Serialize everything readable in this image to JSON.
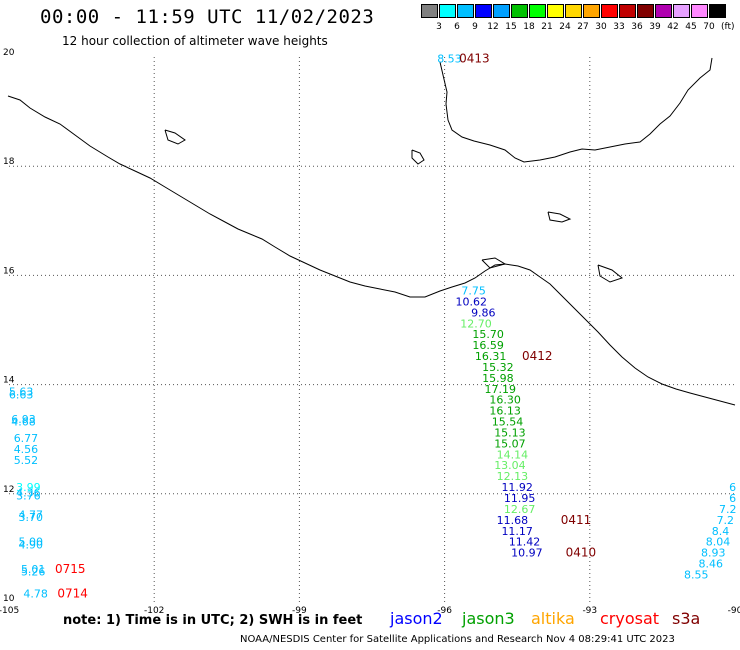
{
  "header": {
    "title": "00:00 - 11:59 UTC 11/02/2023",
    "subtitle": "12 hour collection of altimeter wave heights"
  },
  "legend": {
    "levels": [
      "3",
      "6",
      "9",
      "12",
      "15",
      "18",
      "21",
      "24",
      "27",
      "30",
      "33",
      "36",
      "39",
      "42",
      "45",
      "70"
    ],
    "unit": "(ft)",
    "colors": [
      "#808080",
      "#00ffff",
      "#00bfff",
      "#0000ff",
      "#00a0ff",
      "#00c000",
      "#00ff00",
      "#ffff00",
      "#ffd700",
      "#ffa500",
      "#ff0000",
      "#c00000",
      "#800000",
      "#b000b0",
      "#e6a0ff",
      "#ff88ff",
      "#000000"
    ]
  },
  "axes": {
    "lat_labels": [
      "20",
      "18",
      "16",
      "14",
      "12",
      "10"
    ],
    "lon_labels": [
      "-105",
      "-102",
      "-99",
      "-96",
      "-93",
      "-90"
    ]
  },
  "swh_labels": [
    {
      "text": "8.53",
      "lon": -95.9,
      "lat": 19.9,
      "color": "#00bfff"
    },
    {
      "text": "7.75",
      "lon": -95.4,
      "lat": 15.65,
      "color": "#00bfff"
    },
    {
      "text": "10.62",
      "lon": -95.45,
      "lat": 15.45,
      "color": "#0000c0"
    },
    {
      "text": "9.86",
      "lon": -95.2,
      "lat": 15.25,
      "color": "#0000c0"
    },
    {
      "text": "12.70",
      "lon": -95.35,
      "lat": 15.05,
      "color": "#66ee66"
    },
    {
      "text": "15.70",
      "lon": -95.1,
      "lat": 14.85,
      "color": "#00a000"
    },
    {
      "text": "16.59",
      "lon": -95.1,
      "lat": 14.65,
      "color": "#00a000"
    },
    {
      "text": "16.31",
      "lon": -95.05,
      "lat": 14.45,
      "color": "#00a000"
    },
    {
      "text": "15.32",
      "lon": -94.9,
      "lat": 14.25,
      "color": "#00a000"
    },
    {
      "text": "15.98",
      "lon": -94.9,
      "lat": 14.05,
      "color": "#00a000"
    },
    {
      "text": "17.19",
      "lon": -94.85,
      "lat": 13.85,
      "color": "#00a000"
    },
    {
      "text": "16.30",
      "lon": -94.75,
      "lat": 13.65,
      "color": "#00a000"
    },
    {
      "text": "16.13",
      "lon": -94.75,
      "lat": 13.45,
      "color": "#00a000"
    },
    {
      "text": "15.54",
      "lon": -94.7,
      "lat": 13.25,
      "color": "#00a000"
    },
    {
      "text": "15.13",
      "lon": -94.65,
      "lat": 13.05,
      "color": "#00a000"
    },
    {
      "text": "15.07",
      "lon": -94.65,
      "lat": 12.85,
      "color": "#00a000"
    },
    {
      "text": "14.14",
      "lon": -94.6,
      "lat": 12.65,
      "color": "#66ee66"
    },
    {
      "text": "13.04",
      "lon": -94.65,
      "lat": 12.45,
      "color": "#66ee66"
    },
    {
      "text": "12.13",
      "lon": -94.6,
      "lat": 12.25,
      "color": "#66ee66"
    },
    {
      "text": "11.92",
      "lon": -94.5,
      "lat": 12.05,
      "color": "#0000c0"
    },
    {
      "text": "11.95",
      "lon": -94.45,
      "lat": 11.85,
      "color": "#0000c0"
    },
    {
      "text": "12.67",
      "lon": -94.45,
      "lat": 11.65,
      "color": "#66ee66"
    },
    {
      "text": "11.68",
      "lon": -94.6,
      "lat": 11.45,
      "color": "#0000c0"
    },
    {
      "text": "11.17",
      "lon": -94.5,
      "lat": 11.25,
      "color": "#0000c0"
    },
    {
      "text": "11.42",
      "lon": -94.35,
      "lat": 11.05,
      "color": "#0000c0"
    },
    {
      "text": "10.97",
      "lon": -94.3,
      "lat": 10.85,
      "color": "#0000c0"
    },
    {
      "text": "5.63",
      "lon": -104.75,
      "lat": 13.8,
      "color": "#00bfff"
    },
    {
      "text": "6.63",
      "lon": -104.75,
      "lat": 13.75,
      "color": "#00bfff"
    },
    {
      "text": "6.93",
      "lon": -104.7,
      "lat": 13.3,
      "color": "#00bfff"
    },
    {
      "text": "4.68",
      "lon": -104.7,
      "lat": 13.25,
      "color": "#00bfff"
    },
    {
      "text": "6.77",
      "lon": -104.65,
      "lat": 12.95,
      "color": "#00bfff"
    },
    {
      "text": "4.56",
      "lon": -104.65,
      "lat": 12.75,
      "color": "#00bfff"
    },
    {
      "text": "5.52",
      "lon": -104.65,
      "lat": 12.55,
      "color": "#00bfff"
    },
    {
      "text": "3.99",
      "lon": -104.6,
      "lat": 12.05,
      "color": "#00ffff"
    },
    {
      "text": "4.36",
      "lon": -104.6,
      "lat": 11.95,
      "color": "#00bfff"
    },
    {
      "text": "3.76",
      "lon": -104.6,
      "lat": 11.9,
      "color": "#00bfff"
    },
    {
      "text": "4.77",
      "lon": -104.55,
      "lat": 11.55,
      "color": "#00bfff"
    },
    {
      "text": "3.70",
      "lon": -104.55,
      "lat": 11.5,
      "color": "#00bfff"
    },
    {
      "text": "5.00",
      "lon": -104.55,
      "lat": 11.05,
      "color": "#00bfff"
    },
    {
      "text": "4.90",
      "lon": -104.55,
      "lat": 11.0,
      "color": "#00bfff"
    },
    {
      "text": "5.01",
      "lon": -104.5,
      "lat": 10.55,
      "color": "#00bfff"
    },
    {
      "text": "5.26",
      "lon": -104.5,
      "lat": 10.5,
      "color": "#00bfff"
    },
    {
      "text": "4.78",
      "lon": -104.45,
      "lat": 10.1,
      "color": "#00bfff"
    },
    {
      "text": "6",
      "lon": -90.05,
      "lat": 12.05,
      "color": "#00bfff"
    },
    {
      "text": "6",
      "lon": -90.05,
      "lat": 11.85,
      "color": "#00bfff"
    },
    {
      "text": "7.2",
      "lon": -90.15,
      "lat": 11.65,
      "color": "#00bfff"
    },
    {
      "text": "7.2",
      "lon": -90.2,
      "lat": 11.45,
      "color": "#00bfff"
    },
    {
      "text": "8.4",
      "lon": -90.3,
      "lat": 11.25,
      "color": "#00bfff"
    },
    {
      "text": "8.04",
      "lon": -90.35,
      "lat": 11.05,
      "color": "#00bfff"
    },
    {
      "text": "8.93",
      "lon": -90.45,
      "lat": 10.85,
      "color": "#00bfff"
    },
    {
      "text": "8.46",
      "lon": -90.5,
      "lat": 10.65,
      "color": "#00bfff"
    },
    {
      "text": "8.55",
      "lon": -90.8,
      "lat": 10.45,
      "color": "#00bfff"
    }
  ],
  "time_labels": [
    {
      "text": "0413",
      "lon": -95.7,
      "lat": 19.9,
      "color": "#800000"
    },
    {
      "text": "0412",
      "lon": -94.4,
      "lat": 14.45,
      "color": "#800000"
    },
    {
      "text": "0411",
      "lon": -93.6,
      "lat": 11.45,
      "color": "#800000"
    },
    {
      "text": "0410",
      "lon": -93.5,
      "lat": 10.85,
      "color": "#800000"
    },
    {
      "text": "0715",
      "lon": -104.05,
      "lat": 10.55,
      "color": "#ff0000"
    },
    {
      "text": "0714",
      "lon": -104.0,
      "lat": 10.1,
      "color": "#ff0000"
    }
  ],
  "footer": {
    "note": "note:  1) Time is in UTC;  2) SWH is in feet",
    "satellites": [
      {
        "name": "jason2",
        "color": "#0000ff"
      },
      {
        "name": "jason3",
        "color": "#00a000"
      },
      {
        "name": "altika",
        "color": "#ffa500"
      },
      {
        "name": "cryosat",
        "color": "#ff0000"
      },
      {
        "name": "s3a",
        "color": "#800000"
      }
    ],
    "credit": "NOAA/NESDIS Center for Satellite Applications and Research    Nov  4 08:29:41 UTC 2023"
  }
}
